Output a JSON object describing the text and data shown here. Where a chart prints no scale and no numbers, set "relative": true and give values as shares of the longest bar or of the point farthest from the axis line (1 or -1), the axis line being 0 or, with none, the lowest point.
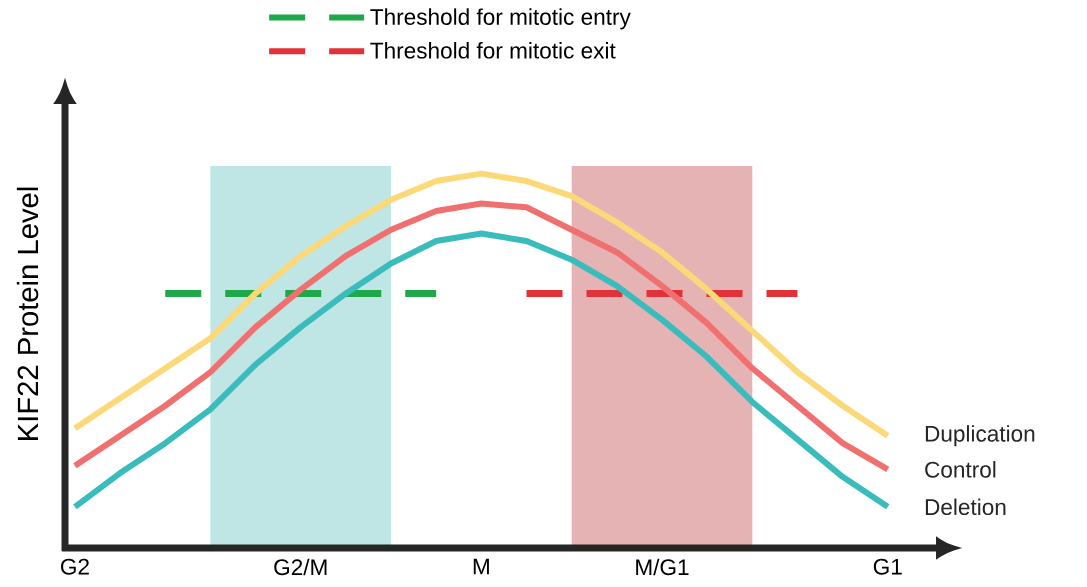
{
  "chart_data": {
    "type": "line",
    "relative": true,
    "ylabel": "KIF22 Protein Level",
    "legend": "top",
    "categories": [
      "G2",
      null,
      null,
      null,
      null,
      "G2/M",
      null,
      null,
      null,
      "M",
      null,
      null,
      null,
      "M/G1",
      null,
      null,
      null,
      null,
      "G1"
    ],
    "series": [
      {
        "name": "Threshold for mitotic entry",
        "color": "#1fa84a",
        "line_style": "dashed",
        "values": [
          null,
          null,
          0.68,
          0.68,
          0.68,
          0.68,
          0.68,
          0.68,
          0.68,
          null,
          null,
          null,
          null,
          null,
          null,
          null,
          null,
          null,
          null
        ]
      },
      {
        "name": "Threshold for mitotic exit",
        "color": "#e03238",
        "line_style": "dashed",
        "values": [
          null,
          null,
          null,
          null,
          null,
          null,
          null,
          null,
          null,
          null,
          0.68,
          0.68,
          0.68,
          0.68,
          0.68,
          0.68,
          0.68,
          null,
          null
        ]
      },
      {
        "name": "Duplication",
        "color": "#fcd978",
        "line_style": "solid",
        "values": [
          0.32,
          0.4,
          0.48,
          0.56,
          0.68,
          0.78,
          0.86,
          0.93,
          0.98,
          1.0,
          0.98,
          0.94,
          0.87,
          0.79,
          0.69,
          0.58,
          0.47,
          0.38,
          0.3
        ]
      },
      {
        "name": "Control",
        "color": "#f07070",
        "line_style": "solid",
        "values": [
          0.22,
          0.3,
          0.38,
          0.47,
          0.59,
          0.69,
          0.78,
          0.85,
          0.9,
          0.92,
          0.91,
          0.85,
          0.79,
          0.7,
          0.6,
          0.48,
          0.38,
          0.28,
          0.21
        ]
      },
      {
        "name": "Deletion",
        "color": "#3bbcbc",
        "line_style": "solid",
        "values": [
          0.11,
          0.2,
          0.28,
          0.37,
          0.49,
          0.59,
          0.68,
          0.76,
          0.82,
          0.84,
          0.82,
          0.77,
          0.7,
          0.61,
          0.51,
          0.39,
          0.29,
          0.19,
          0.11
        ]
      }
    ]
  }
}
